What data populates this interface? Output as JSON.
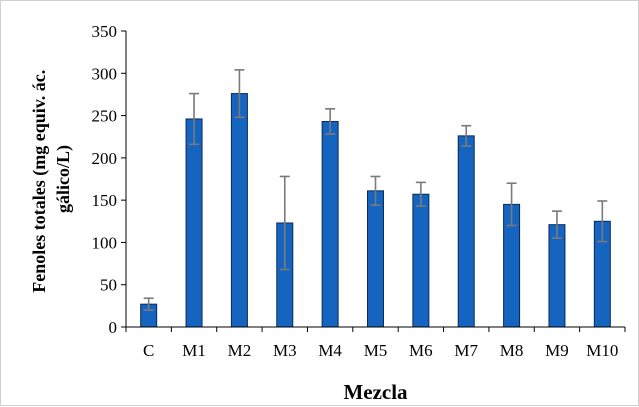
{
  "chart_data": {
    "type": "bar",
    "title": "",
    "xlabel": "Mezcla",
    "ylabel_lines": [
      "Fenoles totales (mg equiv. ác.",
      "gálico/L)"
    ],
    "categories": [
      "C",
      "M1",
      "M2",
      "M3",
      "M4",
      "M5",
      "M6",
      "M7",
      "M8",
      "M9",
      "M10"
    ],
    "series": [
      {
        "values": [
          27,
          246,
          276,
          123,
          243,
          161,
          157,
          226,
          145,
          121,
          125
        ],
        "error": [
          7,
          30,
          28,
          55,
          15,
          17,
          14,
          12,
          25,
          16,
          24
        ]
      }
    ],
    "ylim": [
      0,
      350
    ],
    "yticks": [
      "0",
      "50",
      "100",
      "150",
      "200",
      "250",
      "300",
      "350"
    ],
    "grid": false,
    "legend": "none",
    "bar_color": "#1565c0",
    "bar_edge_color": "#0d2a55",
    "error_color": "#7a7a7a"
  }
}
